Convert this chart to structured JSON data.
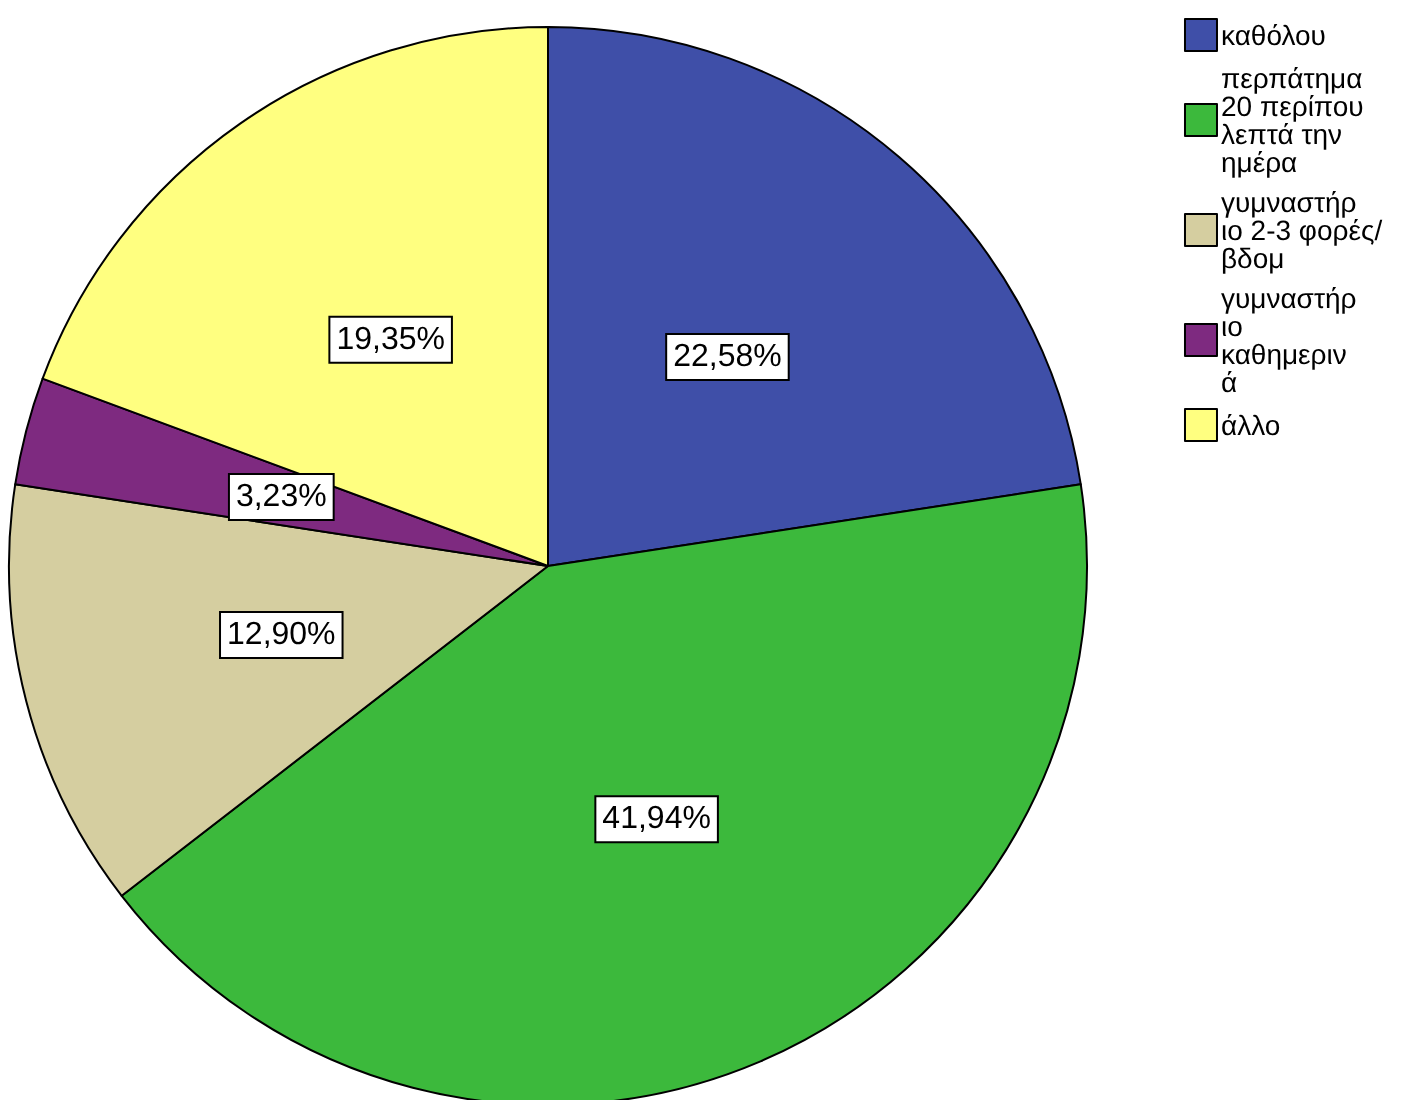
{
  "chart_data": {
    "type": "pie",
    "categories": [
      "καθόλου",
      "περπάτημα 20 περίπου λεπτά την ημέρα",
      "γυμναστήριο 2-3 φορές/ βδομ",
      "γυμναστήριο καθημερινά",
      "άλλο"
    ],
    "values": [
      22.58,
      41.94,
      12.9,
      3.23,
      19.35
    ],
    "value_labels": [
      "22,58%",
      "41,94%",
      "12,90%",
      "3,23%",
      "19,35%"
    ],
    "colors": [
      "#3f4fa8",
      "#3cb93c",
      "#d5cea0",
      "#7e2a80",
      "#ffff80"
    ],
    "legend": "top right"
  }
}
